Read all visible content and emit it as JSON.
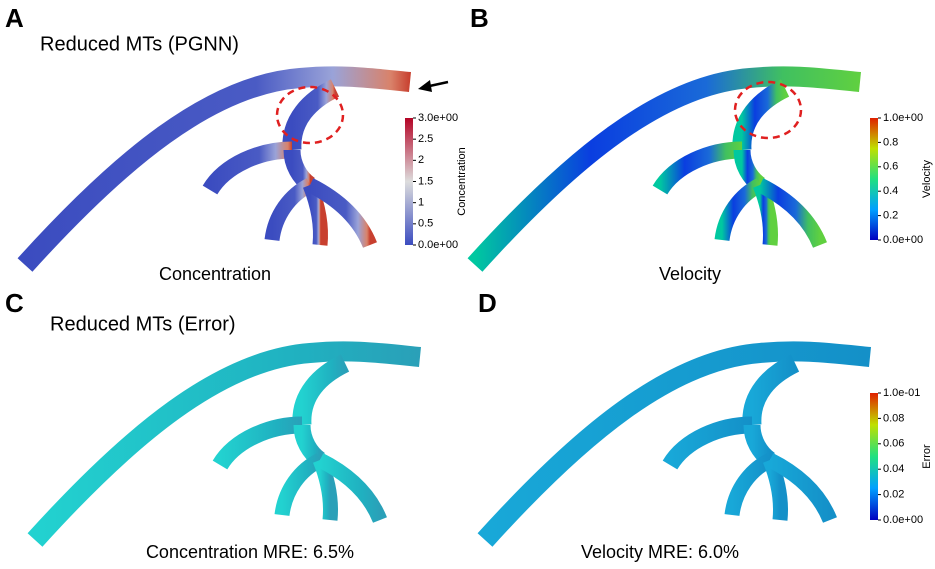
{
  "panels": [
    {
      "letter": "A",
      "title": "Reduced MTs (PGNN)",
      "caption": "Concentration",
      "colorbar": {
        "label": "Concentration",
        "ticks": [
          "3.0e+00",
          "2.5",
          "2",
          "1.5",
          "1",
          "0.5",
          "0.0e+00"
        ]
      }
    },
    {
      "letter": "B",
      "caption": "Velocity",
      "colorbar": {
        "label": "Velocity",
        "ticks": [
          "1.0e+00",
          "0.8",
          "0.6",
          "0.4",
          "0.2",
          "0.0e+00"
        ]
      }
    },
    {
      "letter": "C",
      "title": "Reduced MTs (Error)",
      "caption": "Concentration MRE: 6.5%"
    },
    {
      "letter": "D",
      "caption": "Velocity MRE: 6.0%",
      "colorbar": {
        "label": "Error",
        "ticks": [
          "1.0e-01",
          "0.08",
          "0.06",
          "0.04",
          "0.02",
          "0.0e+00"
        ]
      }
    }
  ]
}
